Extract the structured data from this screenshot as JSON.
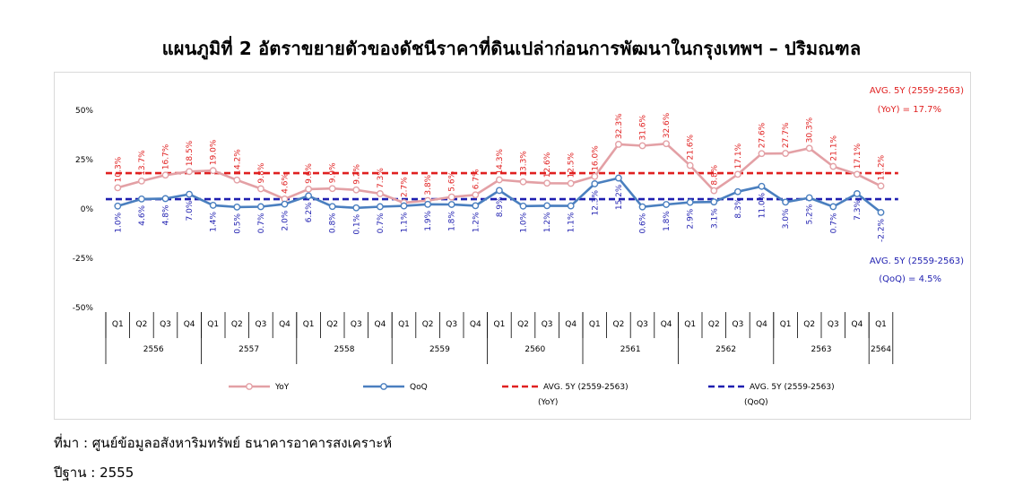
{
  "title": "แผนภูมิที่ 2 อัตราขยายตัวของดัชนีราคาที่ดินเปล่าก่อนการพัฒนาในกรุงเทพฯ – ปริมณฑล",
  "footer": {
    "source": "ที่มา : ศูนย์ข้อมูลอสังหาริมทรัพย์ ธนาคารอาคารสงเคราะห์",
    "base_year": "ปีฐาน : 2555"
  },
  "colors": {
    "yoy": "#e3a0a5",
    "qoq": "#4a7fbf",
    "avg_yoy": "#e02020",
    "avg_qoq": "#1f1fb0",
    "yoy_label": "#e02020",
    "qoq_label": "#1f1fb0"
  },
  "chart_data": {
    "type": "line",
    "title": "",
    "ylim": [
      -50,
      50
    ],
    "yticks": [
      "50%",
      "25%",
      "0%",
      "-25%",
      "-50%"
    ],
    "grid": false,
    "legend_position": "bottom",
    "quarters": [
      "Q1",
      "Q2",
      "Q3",
      "Q4",
      "Q1",
      "Q2",
      "Q3",
      "Q4",
      "Q1",
      "Q2",
      "Q3",
      "Q4",
      "Q1",
      "Q2",
      "Q3",
      "Q4",
      "Q1",
      "Q2",
      "Q3",
      "Q4",
      "Q1",
      "Q2",
      "Q3",
      "Q4",
      "Q1",
      "Q2",
      "Q3",
      "Q4",
      "Q1",
      "Q2",
      "Q3",
      "Q4",
      "Q1"
    ],
    "years": [
      {
        "label": "2556",
        "count": 4
      },
      {
        "label": "2557",
        "count": 4
      },
      {
        "label": "2558",
        "count": 4
      },
      {
        "label": "2559",
        "count": 4
      },
      {
        "label": "2560",
        "count": 4
      },
      {
        "label": "2561",
        "count": 4
      },
      {
        "label": "2562",
        "count": 4
      },
      {
        "label": "2563",
        "count": 4
      },
      {
        "label": "2564",
        "count": 1
      }
    ],
    "series": [
      {
        "name": "YoY",
        "values": [
          10.3,
          13.7,
          16.7,
          18.5,
          19.0,
          14.2,
          9.8,
          4.6,
          9.6,
          9.9,
          9.2,
          7.3,
          2.7,
          3.8,
          5.6,
          6.7,
          14.3,
          13.3,
          12.6,
          12.5,
          16.0,
          32.3,
          31.6,
          32.6,
          21.6,
          8.8,
          17.1,
          27.6,
          27.7,
          30.3,
          21.1,
          17.1,
          11.2
        ],
        "labels": [
          "10.3%",
          "13.7%",
          "16.7%",
          "18.5%",
          "19.0%",
          "14.2%",
          "9.8%",
          "4.6%",
          "9.6%",
          "9.9%",
          "9.2%",
          "7.3%",
          "2.7%",
          "3.8%",
          "5.6%",
          "6.7%",
          "14.3%",
          "13.3%",
          "12.6%",
          "12.5%",
          "16.0%",
          "32.3%",
          "31.6%",
          "32.6%",
          "21.6%",
          "8.8%",
          "17.1%",
          "27.6%",
          "27.7%",
          "30.3%",
          "21.1%",
          "17.1%",
          "11.2%"
        ]
      },
      {
        "name": "QoQ",
        "values": [
          1.0,
          4.6,
          4.8,
          7.0,
          1.4,
          0.5,
          0.7,
          2.0,
          6.2,
          0.8,
          0.1,
          0.7,
          1.1,
          1.9,
          1.8,
          1.2,
          8.9,
          1.0,
          1.2,
          1.1,
          12.3,
          15.2,
          0.6,
          1.8,
          2.9,
          3.1,
          8.3,
          11.0,
          3.0,
          5.2,
          0.7,
          7.3,
          -2.2
        ],
        "labels": [
          "1.0%",
          "4.6%",
          "4.8%",
          "7.0%",
          "1.4%",
          "0.5%",
          "0.7%",
          "2.0%",
          "6.2%",
          "0.8%",
          "0.1%",
          "0.7%",
          "1.1%",
          "1.9%",
          "1.8%",
          "1.2%",
          "8.9%",
          "1.0%",
          "1.2%",
          "1.1%",
          "12.3%",
          "15.2%",
          "0.6%",
          "1.8%",
          "2.9%",
          "3.1%",
          "8.3%",
          "11.0%",
          "3.0%",
          "5.2%",
          "0.7%",
          "7.3%",
          "-2.2%"
        ]
      }
    ],
    "averages": [
      {
        "name": "AVG. 5Y (2559-2563) (YoY)",
        "value": 17.7,
        "line1": "AVG. 5Y (2559-2563)",
        "line2": "(YoY) = 17.7%"
      },
      {
        "name": "AVG. 5Y (2559-2563) (QoQ)",
        "value": 4.5,
        "line1": "AVG. 5Y (2559-2563)",
        "line2": "(QoQ) = 4.5%"
      }
    ],
    "legend": [
      {
        "label": "YoY",
        "line2": ""
      },
      {
        "label": "QoQ",
        "line2": ""
      },
      {
        "label": "AVG. 5Y (2559-2563)",
        "line2": "(YoY)"
      },
      {
        "label": "AVG. 5Y (2559-2563)",
        "line2": "(QoQ)"
      }
    ]
  }
}
